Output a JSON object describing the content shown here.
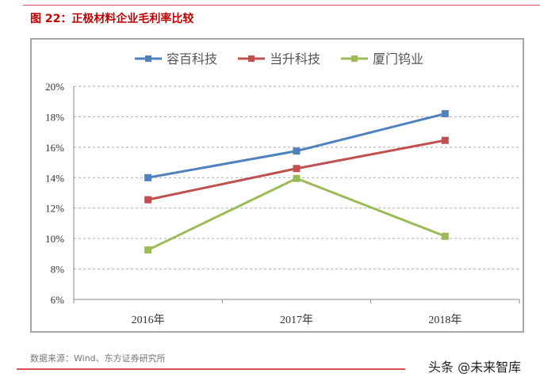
{
  "title": "图 22：正极材料企业毛利率比较",
  "source": "数据来源：Wind、东方证券研究所",
  "watermark": "头条 @未来智库",
  "chart_data": {
    "type": "line",
    "categories": [
      "2016年",
      "2017年",
      "2018年"
    ],
    "ylim": [
      6,
      20
    ],
    "yticks": [
      "6%",
      "8%",
      "10%",
      "12%",
      "14%",
      "16%",
      "18%",
      "20%"
    ],
    "grid": true,
    "legend_position": "top",
    "series": [
      {
        "name": "容百科技",
        "values": [
          14.0,
          15.75,
          18.2
        ],
        "color": "#4f81bd"
      },
      {
        "name": "当升科技",
        "values": [
          12.55,
          14.6,
          16.45
        ],
        "color": "#c0504d"
      },
      {
        "name": "厦门钨业",
        "values": [
          9.25,
          13.95,
          10.15
        ],
        "color": "#9bbb59"
      }
    ]
  }
}
